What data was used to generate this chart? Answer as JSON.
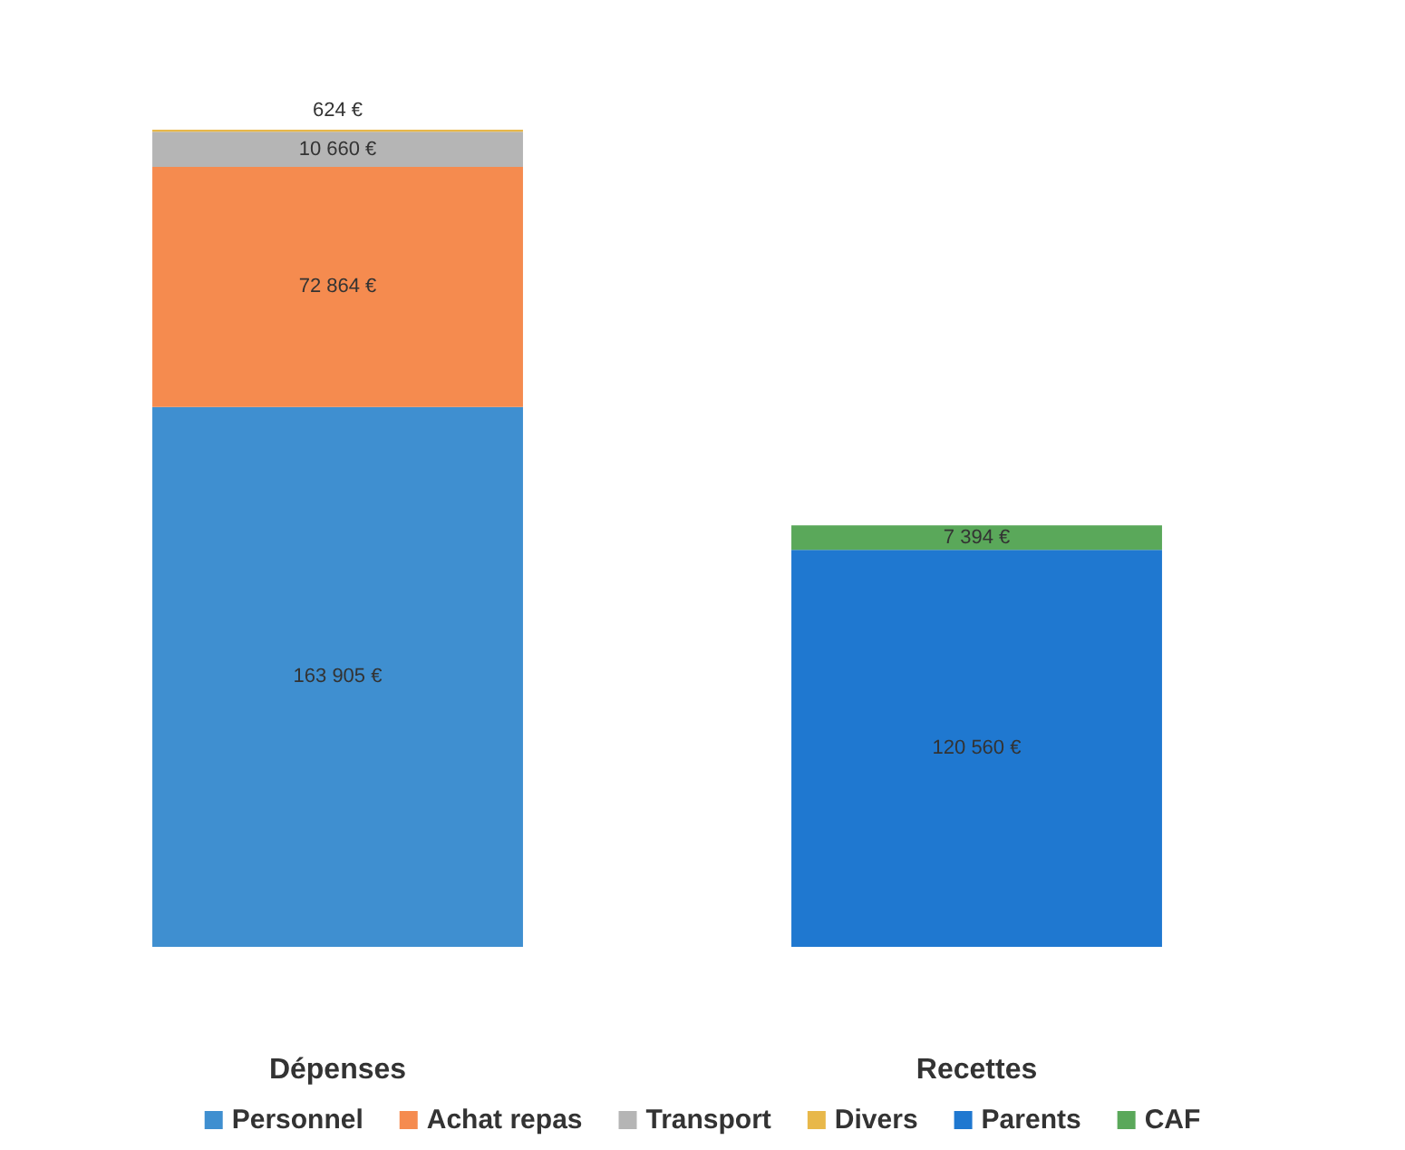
{
  "chart_data": {
    "type": "bar",
    "stacked": true,
    "categories": [
      "Dépenses",
      "Recettes"
    ],
    "series": [
      {
        "name": "Personnel",
        "color": "#3f8fd0",
        "values": [
          163905,
          null
        ],
        "value_labels": [
          "163 905 €",
          null
        ]
      },
      {
        "name": "Achat repas",
        "color": "#f58b4f",
        "values": [
          72864,
          null
        ],
        "value_labels": [
          "72 864 €",
          null
        ]
      },
      {
        "name": "Transport",
        "color": "#b5b5b5",
        "values": [
          10660,
          null
        ],
        "value_labels": [
          "10 660 €",
          null
        ]
      },
      {
        "name": "Divers",
        "color": "#e8b84a",
        "values": [
          624,
          null
        ],
        "value_labels": [
          "624 €",
          null
        ]
      },
      {
        "name": "Parents",
        "color": "#1f78d0",
        "values": [
          null,
          120560
        ],
        "value_labels": [
          null,
          "120 560 €"
        ]
      },
      {
        "name": "CAF",
        "color": "#5aa85a",
        "values": [
          null,
          7394
        ],
        "value_labels": [
          null,
          "7 394 €"
        ]
      }
    ],
    "tick_labels": "x",
    "grid": false,
    "legend": "bottom"
  }
}
